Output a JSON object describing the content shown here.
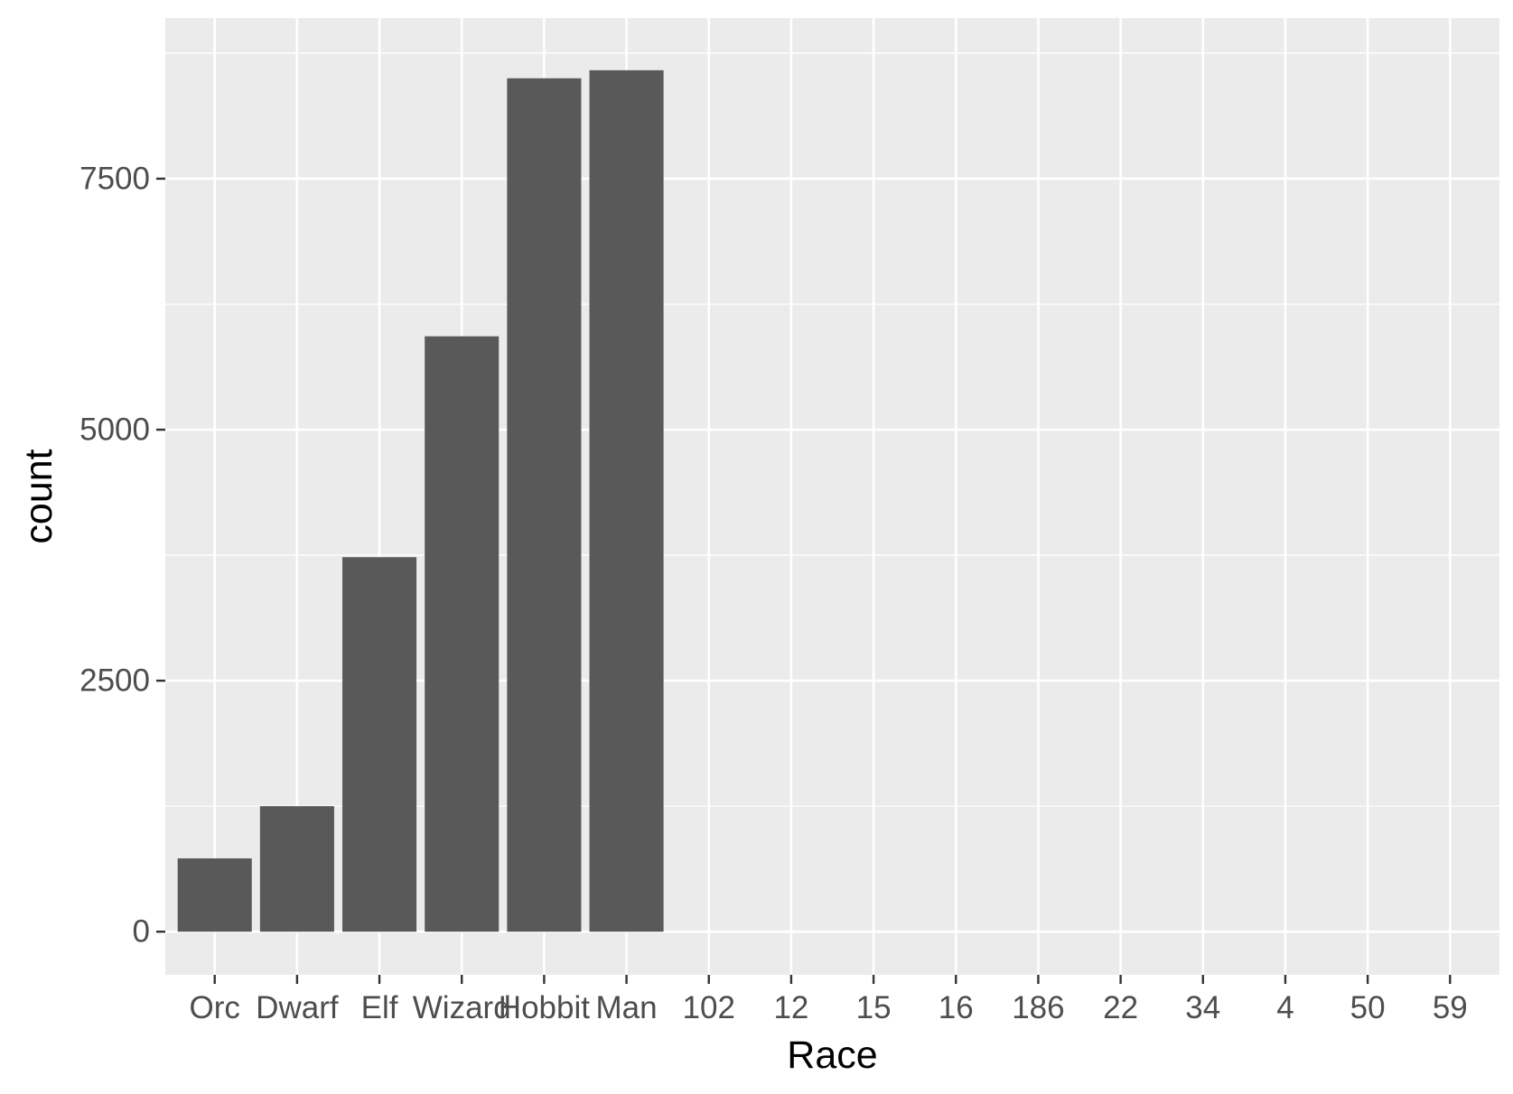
{
  "chart_data": {
    "type": "bar",
    "categories": [
      "Orc",
      "Dwarf",
      "Elf",
      "Wizard",
      "Hobbit",
      "Man",
      "102",
      "12",
      "15",
      "16",
      "186",
      "22",
      "34",
      "4",
      "50",
      "59"
    ],
    "values": [
      730,
      1250,
      3730,
      5930,
      8500,
      8580,
      0,
      0,
      0,
      0,
      0,
      0,
      0,
      0,
      0,
      0
    ],
    "title": "",
    "xlabel": "Race",
    "ylabel": "count",
    "ylim": [
      -430,
      9100
    ],
    "yticks": [
      0,
      2500,
      5000,
      7500
    ],
    "ytick_labels": [
      "0",
      "2500",
      "5000",
      "7500"
    ],
    "grid": true,
    "colors": {
      "panel_background": "#ebebeb",
      "grid_line": "#ffffff",
      "bar_fill": "#595959",
      "tick_text": "#4d4d4d",
      "axis_title": "#000000",
      "tick_mark": "#333333"
    }
  }
}
